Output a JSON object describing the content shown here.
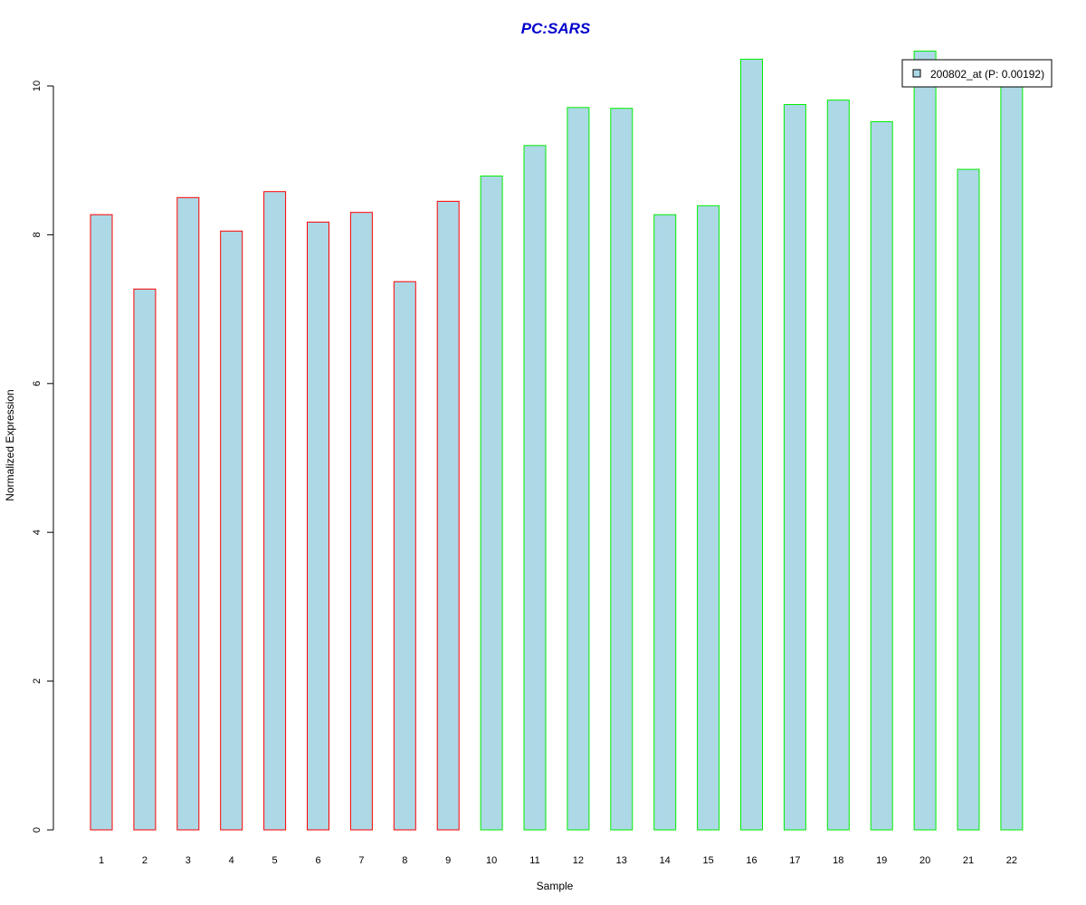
{
  "chart_data": {
    "type": "bar",
    "title": "PC:SARS",
    "xlabel": "Sample",
    "ylabel": "Normalized Expression",
    "categories": [
      "1",
      "2",
      "3",
      "4",
      "5",
      "6",
      "7",
      "8",
      "9",
      "10",
      "11",
      "12",
      "13",
      "14",
      "15",
      "16",
      "17",
      "18",
      "19",
      "20",
      "21",
      "22"
    ],
    "values": [
      8.27,
      7.27,
      8.5,
      8.05,
      8.58,
      8.17,
      8.3,
      7.37,
      8.45,
      8.79,
      9.2,
      9.71,
      9.7,
      8.27,
      8.39,
      10.36,
      9.75,
      9.81,
      9.52,
      10.47,
      8.88,
      10.02
    ],
    "border_colors": [
      "#ff0000",
      "#ff0000",
      "#ff0000",
      "#ff0000",
      "#ff0000",
      "#ff0000",
      "#ff0000",
      "#ff0000",
      "#ff0000",
      "#00ee00",
      "#00ee00",
      "#00ee00",
      "#00ee00",
      "#00ee00",
      "#00ee00",
      "#00ee00",
      "#00ee00",
      "#00ee00",
      "#00ee00",
      "#00ee00",
      "#00ee00",
      "#00ee00"
    ],
    "fill_color": "#add8e6",
    "title_color": "#0000cc",
    "yticks": [
      "0",
      "2",
      "4",
      "6",
      "8",
      "10"
    ],
    "ylim": [
      0,
      10.5
    ],
    "grid": false,
    "legend": {
      "placement": "top-right",
      "entries": [
        {
          "label": "200802_at (P: 0.00192)",
          "color": "#add8e6"
        }
      ]
    }
  }
}
